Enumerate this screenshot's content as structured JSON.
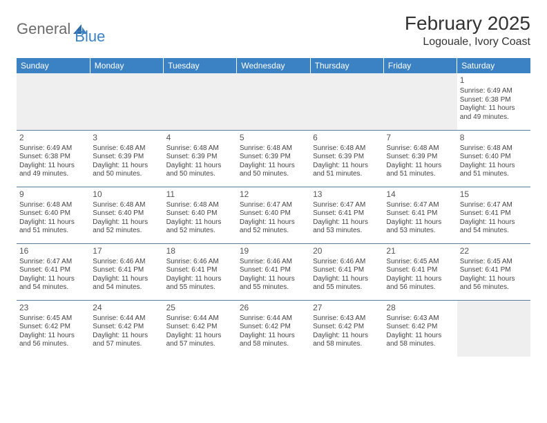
{
  "logo": {
    "word1": "General",
    "word2": "Blue"
  },
  "title": "February 2025",
  "location": "Logouale, Ivory Coast",
  "colors": {
    "header_bg": "#3b82c4",
    "header_text": "#ffffff",
    "row_divider": "#5a7a9a",
    "empty_bg": "#efefef",
    "text": "#444444",
    "logo_blue": "#3b82c4",
    "logo_gray": "#6b6b6b"
  },
  "days_of_week": [
    "Sunday",
    "Monday",
    "Tuesday",
    "Wednesday",
    "Thursday",
    "Friday",
    "Saturday"
  ],
  "cells": [
    [
      null,
      null,
      null,
      null,
      null,
      null,
      {
        "n": "1",
        "sunrise": "6:49 AM",
        "sunset": "6:38 PM",
        "daylight": "11 hours and 49 minutes."
      }
    ],
    [
      {
        "n": "2",
        "sunrise": "6:49 AM",
        "sunset": "6:38 PM",
        "daylight": "11 hours and 49 minutes."
      },
      {
        "n": "3",
        "sunrise": "6:48 AM",
        "sunset": "6:39 PM",
        "daylight": "11 hours and 50 minutes."
      },
      {
        "n": "4",
        "sunrise": "6:48 AM",
        "sunset": "6:39 PM",
        "daylight": "11 hours and 50 minutes."
      },
      {
        "n": "5",
        "sunrise": "6:48 AM",
        "sunset": "6:39 PM",
        "daylight": "11 hours and 50 minutes."
      },
      {
        "n": "6",
        "sunrise": "6:48 AM",
        "sunset": "6:39 PM",
        "daylight": "11 hours and 51 minutes."
      },
      {
        "n": "7",
        "sunrise": "6:48 AM",
        "sunset": "6:39 PM",
        "daylight": "11 hours and 51 minutes."
      },
      {
        "n": "8",
        "sunrise": "6:48 AM",
        "sunset": "6:40 PM",
        "daylight": "11 hours and 51 minutes."
      }
    ],
    [
      {
        "n": "9",
        "sunrise": "6:48 AM",
        "sunset": "6:40 PM",
        "daylight": "11 hours and 51 minutes."
      },
      {
        "n": "10",
        "sunrise": "6:48 AM",
        "sunset": "6:40 PM",
        "daylight": "11 hours and 52 minutes."
      },
      {
        "n": "11",
        "sunrise": "6:48 AM",
        "sunset": "6:40 PM",
        "daylight": "11 hours and 52 minutes."
      },
      {
        "n": "12",
        "sunrise": "6:47 AM",
        "sunset": "6:40 PM",
        "daylight": "11 hours and 52 minutes."
      },
      {
        "n": "13",
        "sunrise": "6:47 AM",
        "sunset": "6:41 PM",
        "daylight": "11 hours and 53 minutes."
      },
      {
        "n": "14",
        "sunrise": "6:47 AM",
        "sunset": "6:41 PM",
        "daylight": "11 hours and 53 minutes."
      },
      {
        "n": "15",
        "sunrise": "6:47 AM",
        "sunset": "6:41 PM",
        "daylight": "11 hours and 54 minutes."
      }
    ],
    [
      {
        "n": "16",
        "sunrise": "6:47 AM",
        "sunset": "6:41 PM",
        "daylight": "11 hours and 54 minutes."
      },
      {
        "n": "17",
        "sunrise": "6:46 AM",
        "sunset": "6:41 PM",
        "daylight": "11 hours and 54 minutes."
      },
      {
        "n": "18",
        "sunrise": "6:46 AM",
        "sunset": "6:41 PM",
        "daylight": "11 hours and 55 minutes."
      },
      {
        "n": "19",
        "sunrise": "6:46 AM",
        "sunset": "6:41 PM",
        "daylight": "11 hours and 55 minutes."
      },
      {
        "n": "20",
        "sunrise": "6:46 AM",
        "sunset": "6:41 PM",
        "daylight": "11 hours and 55 minutes."
      },
      {
        "n": "21",
        "sunrise": "6:45 AM",
        "sunset": "6:41 PM",
        "daylight": "11 hours and 56 minutes."
      },
      {
        "n": "22",
        "sunrise": "6:45 AM",
        "sunset": "6:41 PM",
        "daylight": "11 hours and 56 minutes."
      }
    ],
    [
      {
        "n": "23",
        "sunrise": "6:45 AM",
        "sunset": "6:42 PM",
        "daylight": "11 hours and 56 minutes."
      },
      {
        "n": "24",
        "sunrise": "6:44 AM",
        "sunset": "6:42 PM",
        "daylight": "11 hours and 57 minutes."
      },
      {
        "n": "25",
        "sunrise": "6:44 AM",
        "sunset": "6:42 PM",
        "daylight": "11 hours and 57 minutes."
      },
      {
        "n": "26",
        "sunrise": "6:44 AM",
        "sunset": "6:42 PM",
        "daylight": "11 hours and 58 minutes."
      },
      {
        "n": "27",
        "sunrise": "6:43 AM",
        "sunset": "6:42 PM",
        "daylight": "11 hours and 58 minutes."
      },
      {
        "n": "28",
        "sunrise": "6:43 AM",
        "sunset": "6:42 PM",
        "daylight": "11 hours and 58 minutes."
      },
      null
    ]
  ],
  "labels": {
    "sunrise": "Sunrise:",
    "sunset": "Sunset:",
    "daylight": "Daylight:"
  }
}
